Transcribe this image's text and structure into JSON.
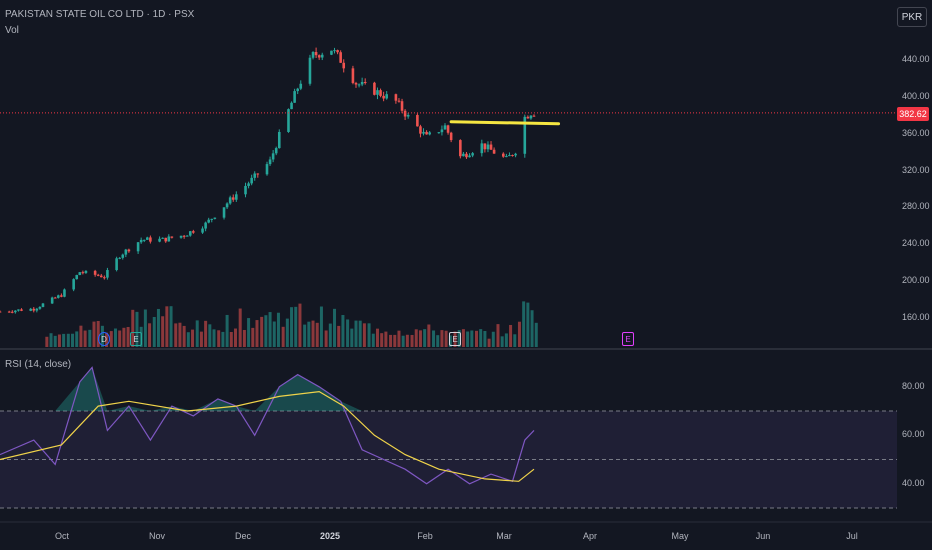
{
  "header": {
    "symbol": "PAKISTAN STATE OIL CO LTD · 1D · PSX",
    "volume_label": "Vol",
    "currency": "PKR",
    "rsi_label": "RSI (14, close)"
  },
  "price_axis": {
    "ticks": [
      "440.00",
      "400.00",
      "360.00",
      "320.00",
      "280.00",
      "240.00",
      "200.00",
      "160.00"
    ]
  },
  "rsi_axis": {
    "ticks": [
      "80.00",
      "60.00",
      "40.00"
    ]
  },
  "time_axis": {
    "labels": [
      "Oct",
      "Nov",
      "Dec",
      "2025",
      "Feb",
      "Mar",
      "Apr",
      "May",
      "Jun",
      "Jul"
    ]
  },
  "last_price": "382.62",
  "events": [
    {
      "letter": "D",
      "color": "#2962ff"
    },
    {
      "letter": "E",
      "color": "#26a69a"
    },
    {
      "letter": "E",
      "color": "#d1d4dc"
    },
    {
      "letter": "E",
      "color": "#e040fb"
    }
  ],
  "colors": {
    "up": "#26a69a",
    "down": "#ef5350",
    "bg": "#131722",
    "rsi": "#7e57c2",
    "rsi_ma": "#f0d34a",
    "highlight_line": "#f5e642"
  },
  "chart_data": [
    {
      "type": "candlestick",
      "title": "PAKISTAN STATE OIL CO LTD · 1D · PSX",
      "y_range": [
        120,
        480
      ],
      "anchors_date_close": [
        [
          "2024-09-20",
          167
        ],
        [
          "2024-10-01",
          170
        ],
        [
          "2024-10-10",
          185
        ],
        [
          "2024-10-16",
          210
        ],
        [
          "2024-10-24",
          205
        ],
        [
          "2024-10-29",
          228
        ],
        [
          "2024-11-05",
          245
        ],
        [
          "2024-11-12",
          245
        ],
        [
          "2024-11-19",
          250
        ],
        [
          "2024-11-26",
          262
        ],
        [
          "2024-12-04",
          288
        ],
        [
          "2024-12-12",
          313
        ],
        [
          "2024-12-17",
          330
        ],
        [
          "2024-12-23",
          385
        ],
        [
          "2024-12-26",
          410
        ],
        [
          "2024-12-31",
          445
        ],
        [
          "2025-01-06",
          452
        ],
        [
          "2025-01-09",
          440
        ],
        [
          "2025-01-14",
          415
        ],
        [
          "2025-01-21",
          405
        ],
        [
          "2025-01-27",
          395
        ],
        [
          "2025-01-31",
          378
        ],
        [
          "2025-02-06",
          356
        ],
        [
          "2025-02-12",
          368
        ],
        [
          "2025-02-17",
          335
        ],
        [
          "2025-02-24",
          348
        ],
        [
          "2025-03-04",
          332
        ],
        [
          "2025-03-07",
          342
        ],
        [
          "2025-03-10",
          378
        ],
        [
          "2025-03-12",
          383
        ],
        [
          "2025-03-13",
          382.62
        ]
      ],
      "resistance_level": 373,
      "resistance_dates": [
        "2025-02-14",
        "2025-03-21"
      ]
    },
    {
      "type": "bar",
      "ylabel": "Vol",
      "note": "volume per day, relative scale 0-100",
      "x_dates": [
        "2024-10-08",
        "2024-10-15",
        "2024-10-22",
        "2024-10-29",
        "2024-11-05",
        "2024-11-12",
        "2024-11-19",
        "2024-11-26",
        "2024-12-03",
        "2024-12-10",
        "2024-12-17",
        "2024-12-24",
        "2024-12-31",
        "2025-01-07",
        "2025-01-14",
        "2025-01-21",
        "2025-01-28",
        "2025-02-04",
        "2025-02-11",
        "2025-02-18",
        "2025-02-25",
        "2025-03-04",
        "2025-03-11"
      ],
      "values": [
        20,
        30,
        40,
        35,
        55,
        60,
        40,
        35,
        45,
        50,
        55,
        60,
        55,
        50,
        40,
        35,
        30,
        30,
        30,
        25,
        25,
        30,
        65
      ]
    },
    {
      "type": "line",
      "title": "RSI (14, close)",
      "y_range": [
        30,
        90
      ],
      "bands": [
        70,
        50,
        30
      ],
      "series": [
        {
          "values_by_date": [
            [
              "2024-09-20",
              52
            ],
            [
              "2024-10-01",
              58
            ],
            [
              "2024-10-08",
              48
            ],
            [
              "2024-10-16",
              82
            ],
            [
              "2024-10-20",
              88
            ],
            [
              "2024-10-25",
              62
            ],
            [
              "2024-11-01",
              72
            ],
            [
              "2024-11-08",
              58
            ],
            [
              "2024-11-15",
              72
            ],
            [
              "2024-11-22",
              68
            ],
            [
              "2024-11-30",
              75
            ],
            [
              "2024-12-06",
              72
            ],
            [
              "2024-12-12",
              60
            ],
            [
              "2024-12-20",
              80
            ],
            [
              "2024-12-26",
              85
            ],
            [
              "2025-01-02",
              80
            ],
            [
              "2025-01-09",
              74
            ],
            [
              "2025-01-16",
              54
            ],
            [
              "2025-01-23",
              50
            ],
            [
              "2025-01-30",
              46
            ],
            [
              "2025-02-06",
              40
            ],
            [
              "2025-02-13",
              46
            ],
            [
              "2025-02-20",
              40
            ],
            [
              "2025-02-27",
              44
            ],
            [
              "2025-03-06",
              41
            ],
            [
              "2025-03-10",
              58
            ],
            [
              "2025-03-13",
              62
            ]
          ]
        },
        {
          "values_by_date": [
            [
              "2024-09-20",
              50
            ],
            [
              "2024-10-10",
              56
            ],
            [
              "2024-10-22",
              72
            ],
            [
              "2024-11-01",
              74
            ],
            [
              "2024-11-20",
              70
            ],
            [
              "2024-12-06",
              72
            ],
            [
              "2024-12-20",
              76
            ],
            [
              "2025-01-02",
              78
            ],
            [
              "2025-01-10",
              72
            ],
            [
              "2025-01-20",
              60
            ],
            [
              "2025-01-30",
              52
            ],
            [
              "2025-02-10",
              46
            ],
            [
              "2025-02-25",
              42
            ],
            [
              "2025-03-08",
              41
            ],
            [
              "2025-03-13",
              46
            ]
          ]
        }
      ]
    }
  ]
}
